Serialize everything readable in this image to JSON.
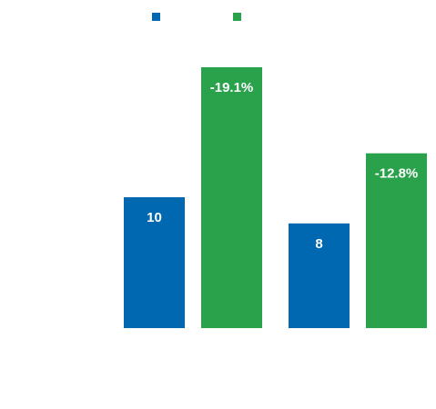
{
  "chart_data": {
    "type": "bar",
    "title": "",
    "xlabel": "",
    "ylabel": "",
    "grid": false,
    "legend_placement": "top",
    "categories": [
      "",
      ""
    ],
    "series": [
      {
        "color": "#0067b1",
        "values": [
          10,
          8
        ],
        "labels": [
          "10",
          "8"
        ]
      },
      {
        "color": "#2aa14b",
        "values": [
          -19.1,
          -12.8
        ],
        "labels": [
          "-19.1%",
          "-12.8%"
        ]
      }
    ]
  }
}
